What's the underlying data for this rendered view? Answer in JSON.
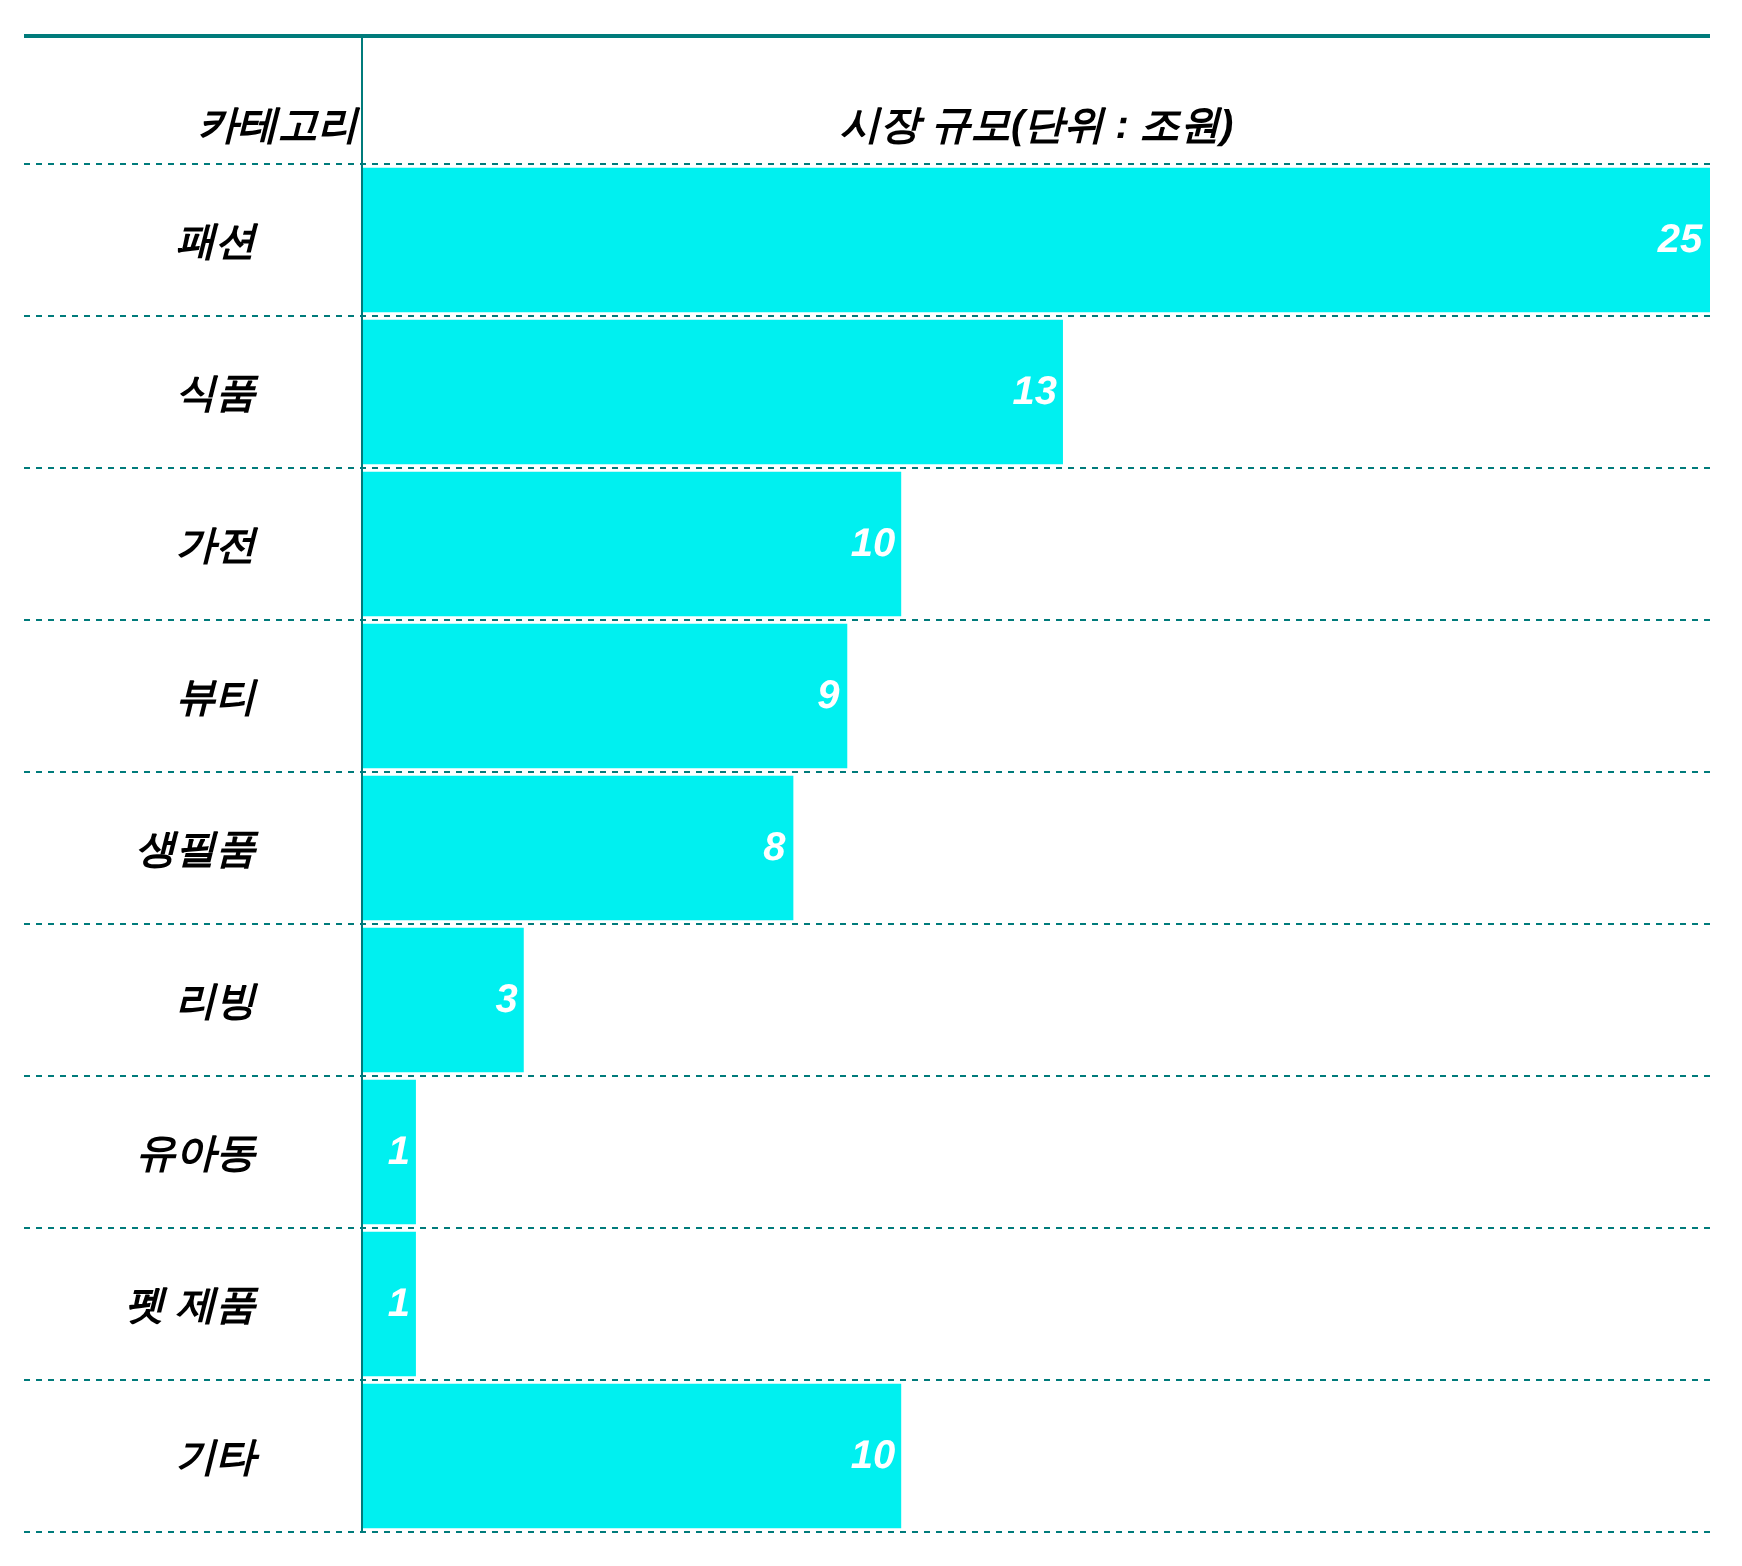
{
  "chart_data": {
    "type": "bar",
    "orientation": "horizontal",
    "ylabel": "카테고리",
    "xlabel": "시장 규모(단위 : 조원)",
    "categories": [
      "패션",
      "식품",
      "가전",
      "뷰티",
      "생필품",
      "리빙",
      "유아동",
      "펫 제품",
      "기타"
    ],
    "values": [
      25,
      13,
      10,
      9,
      8,
      3,
      1,
      1,
      10
    ],
    "color": "#00f0f0",
    "xlim": [
      0,
      25
    ],
    "data_labels": true,
    "tick_labels": "y"
  }
}
